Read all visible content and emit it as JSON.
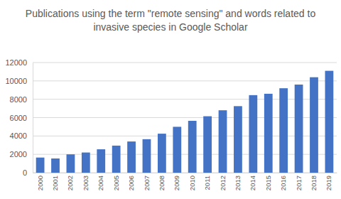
{
  "chart_data": {
    "type": "bar",
    "title": "Publications using the term \"remote sensing\" and words related to invasive species in Google Scholar",
    "categories": [
      "2000",
      "2001",
      "2002",
      "2003",
      "2004",
      "2005",
      "2006",
      "2007",
      "2008",
      "2009",
      "2010",
      "2011",
      "2012",
      "2013",
      "2014",
      "2015",
      "2016",
      "2017",
      "2018",
      "2019"
    ],
    "values": [
      1650,
      1550,
      2000,
      2200,
      2550,
      2950,
      3400,
      3650,
      4250,
      5000,
      5650,
      6150,
      6800,
      7250,
      8450,
      8600,
      9200,
      9600,
      10400,
      11100
    ],
    "color": "#4472c4",
    "ylim": [
      0,
      12000
    ],
    "yticks": [
      0,
      2000,
      4000,
      6000,
      8000,
      10000,
      12000
    ],
    "grid": true
  }
}
